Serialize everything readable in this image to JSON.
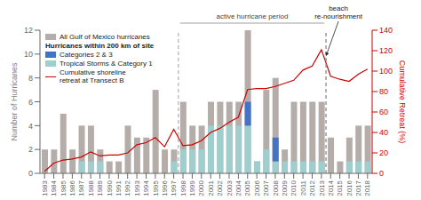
{
  "chart_data": {
    "type": "bar",
    "categories": [
      "1983",
      "1984",
      "1985",
      "1986",
      "1987",
      "1988",
      "1989",
      "1990",
      "1991",
      "1992",
      "1993",
      "1994",
      "1995",
      "1996",
      "1997",
      "1998",
      "1999",
      "2000",
      "2001",
      "2002",
      "2003",
      "2004",
      "2005",
      "2006",
      "2007",
      "2008",
      "2009",
      "2010",
      "2011",
      "2012",
      "2013",
      "2014",
      "2015",
      "2016",
      "2017",
      "2018"
    ],
    "series": [
      {
        "name": "All Gulf of Mexico hurricanes",
        "color": "#b5adaa",
        "values": [
          2,
          2,
          5,
          2,
          4,
          4,
          2,
          1,
          1,
          4,
          3,
          3,
          7,
          2,
          2,
          6,
          4,
          4,
          6,
          6,
          6,
          6,
          12,
          1,
          7,
          8,
          2,
          6,
          6,
          6,
          6,
          3,
          1,
          3,
          4,
          4
        ]
      },
      {
        "name": "Tropical Storms & Category 1",
        "color": "#9ecece",
        "stacked": true,
        "values": [
          0,
          0,
          0,
          0,
          1,
          1,
          1,
          0,
          0,
          0,
          0,
          0,
          0,
          0,
          1,
          2,
          2,
          2,
          4,
          4,
          4,
          4,
          4,
          1,
          2,
          1,
          1,
          1,
          1,
          1,
          1,
          0,
          0,
          1,
          1,
          1
        ]
      },
      {
        "name": "Categories 2 & 3",
        "color": "#4472c4",
        "stacked": true,
        "values": [
          0,
          0,
          0,
          0,
          0,
          0,
          0,
          0,
          0,
          0,
          0,
          0,
          0,
          0,
          0,
          0,
          0,
          0,
          0,
          0,
          0,
          0,
          2,
          0,
          0,
          2,
          0,
          0,
          0,
          0,
          0,
          0,
          0,
          0,
          0,
          0
        ]
      },
      {
        "name": "Cumulative shoreline\nretreat at Transect B",
        "type": "line",
        "axis": "y2",
        "color": "#cc0000",
        "values": [
          2,
          10,
          13,
          14,
          16,
          21,
          17,
          18,
          18,
          20,
          28,
          30,
          35,
          26,
          43,
          27,
          28,
          32,
          40,
          44,
          50,
          55,
          82,
          83,
          83,
          85,
          88,
          91,
          101,
          105,
          121,
          95,
          92,
          90,
          97,
          102
        ]
      }
    ],
    "ylabel": "Number of Hurricanes",
    "y2label": "Cumulative Retreat (%)",
    "ylim": [
      0,
      12
    ],
    "yticks": [
      0,
      2,
      4,
      6,
      8,
      10,
      12
    ],
    "y2lim": [
      0,
      140
    ],
    "y2ticks": [
      0,
      20,
      40,
      60,
      80,
      100,
      120,
      140
    ],
    "legend": "upper left",
    "legend_title": "Hurricanes within 200 km of site",
    "grid": false,
    "annotations": [
      {
        "text": "active hurricane period",
        "x": [
          "1998",
          "2013"
        ]
      },
      {
        "text": "beach\nre-nourishment",
        "x": [
          "2014"
        ]
      }
    ]
  }
}
